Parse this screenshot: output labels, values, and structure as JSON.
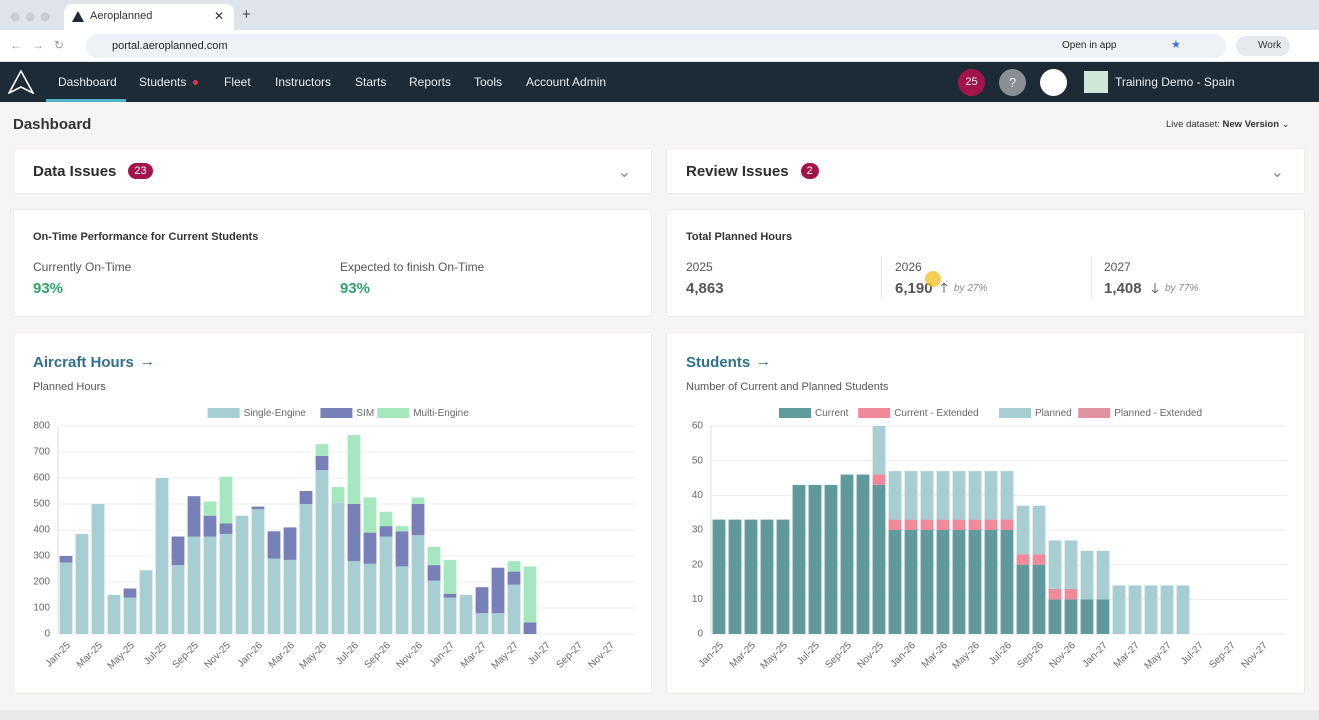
{
  "browser": {
    "tab_title": "Aeroplanned",
    "url": "portal.aeroplanned.com",
    "open_in_app": "Open in app",
    "profile": "Work"
  },
  "nav": {
    "items": [
      "Dashboard",
      "Students",
      "Fleet",
      "Instructors",
      "Starts",
      "Reports",
      "Tools",
      "Account Admin"
    ],
    "notifications": "25",
    "help": "?",
    "organization": "Training Demo - Spain"
  },
  "page": {
    "title": "Dashboard",
    "dataset_label": "Live dataset:",
    "dataset_value": "New Version"
  },
  "issues": [
    {
      "title": "Data Issues",
      "count": "23"
    },
    {
      "title": "Review Issues",
      "count": "2"
    }
  ],
  "on_time": {
    "title": "On-Time Performance for Current Students",
    "metrics": [
      {
        "label": "Currently On-Time",
        "value": "93%"
      },
      {
        "label": "Expected to finish On-Time",
        "value": "93%"
      }
    ]
  },
  "planned_hours": {
    "title": "Total Planned Hours",
    "years": [
      {
        "year": "2025",
        "value": "4,863"
      },
      {
        "year": "2026",
        "value": "6,190",
        "change": "by 27%"
      },
      {
        "year": "2027",
        "value": "1,408",
        "change": "by 77%"
      }
    ]
  },
  "chart_data": [
    {
      "type": "stacked_bar",
      "title": "Aircraft Hours",
      "subtitle": "Planned Hours",
      "categories": [
        "Jan-25",
        null,
        "Mar-25",
        null,
        "May-25",
        null,
        "Jul-25",
        null,
        "Sep-25",
        null,
        "Nov-25",
        null,
        "Jan-26",
        null,
        "Mar-26",
        null,
        "May-26",
        null,
        "Jul-26",
        null,
        "Sep-26",
        null,
        "Nov-26",
        null,
        "Jan-27",
        null,
        "Mar-27",
        null,
        "May-27",
        null,
        "Jul-27",
        null,
        "Sep-27",
        null,
        "Nov-27",
        null
      ],
      "series": [
        {
          "name": "Single-Engine",
          "color": "#a7cfd3",
          "values": [
            275,
            385,
            500,
            150,
            140,
            245,
            600,
            265,
            375,
            375,
            385,
            455,
            480,
            290,
            285,
            500,
            630,
            505,
            280,
            270,
            375,
            260,
            380,
            205,
            140,
            150,
            80,
            80,
            190,
            0,
            0,
            0,
            0,
            0,
            0,
            0
          ]
        },
        {
          "name": "SIM",
          "color": "#7880b8",
          "values": [
            25,
            0,
            0,
            0,
            35,
            0,
            0,
            110,
            155,
            80,
            40,
            0,
            10,
            105,
            125,
            50,
            55,
            0,
            220,
            120,
            40,
            135,
            120,
            60,
            15,
            0,
            100,
            175,
            50,
            45,
            0,
            0,
            0,
            0,
            0,
            0
          ]
        },
        {
          "name": "Multi-Engine",
          "color": "#a5e8be",
          "values": [
            0,
            0,
            0,
            0,
            0,
            0,
            0,
            0,
            0,
            55,
            180,
            0,
            0,
            0,
            0,
            0,
            45,
            60,
            265,
            135,
            55,
            20,
            25,
            70,
            130,
            0,
            0,
            0,
            40,
            215,
            0,
            0,
            0,
            0,
            0,
            0
          ]
        }
      ],
      "ylim": [
        0,
        800
      ],
      "yticks": [
        0,
        100,
        200,
        300,
        400,
        500,
        600,
        700,
        800
      ],
      "grid": true,
      "legend": "top"
    },
    {
      "type": "stacked_bar",
      "title": "Students",
      "subtitle": "Number of Current and Planned Students",
      "categories": [
        "Jan-25",
        null,
        "Mar-25",
        null,
        "May-25",
        null,
        "Jul-25",
        null,
        "Sep-25",
        null,
        "Nov-25",
        null,
        "Jan-26",
        null,
        "Mar-26",
        null,
        "May-26",
        null,
        "Jul-26",
        null,
        "Sep-26",
        null,
        "Nov-26",
        null,
        "Jan-27",
        null,
        "Mar-27",
        null,
        "May-27",
        null,
        "Jul-27",
        null,
        "Sep-27",
        null,
        "Nov-27",
        null
      ],
      "series": [
        {
          "name": "Current",
          "color": "#5f9b9c",
          "values": [
            33,
            33,
            33,
            33,
            33,
            43,
            43,
            43,
            46,
            46,
            43,
            30,
            30,
            30,
            30,
            30,
            30,
            30,
            30,
            20,
            20,
            10,
            10,
            10,
            10,
            0,
            0,
            0,
            0,
            0,
            0,
            0,
            0,
            0,
            0,
            0
          ]
        },
        {
          "name": "Current - Extended",
          "color": "#f0899a",
          "values": [
            0,
            0,
            0,
            0,
            0,
            0,
            0,
            0,
            0,
            0,
            3,
            3,
            3,
            3,
            3,
            3,
            3,
            3,
            3,
            3,
            3,
            3,
            3,
            0,
            0,
            0,
            0,
            0,
            0,
            0,
            0,
            0,
            0,
            0,
            0,
            0
          ]
        },
        {
          "name": "Planned",
          "color": "#a7cfd3",
          "values": [
            0,
            0,
            0,
            0,
            0,
            0,
            0,
            0,
            0,
            0,
            14,
            14,
            14,
            14,
            14,
            14,
            14,
            14,
            14,
            14,
            14,
            14,
            14,
            14,
            14,
            14,
            14,
            14,
            14,
            14,
            0,
            0,
            0,
            0,
            0,
            0
          ]
        },
        {
          "name": "Planned - Extended",
          "color": "#e0939e",
          "values": [
            0,
            0,
            0,
            0,
            0,
            0,
            0,
            0,
            0,
            0,
            0,
            0,
            0,
            0,
            0,
            0,
            0,
            0,
            0,
            0,
            0,
            0,
            0,
            0,
            0,
            0,
            0,
            0,
            0,
            0,
            0,
            0,
            0,
            0,
            0,
            0
          ]
        }
      ],
      "ylim": [
        0,
        60
      ],
      "yticks": [
        0,
        10,
        20,
        30,
        40,
        50,
        60
      ],
      "grid": true,
      "legend": "top"
    }
  ]
}
